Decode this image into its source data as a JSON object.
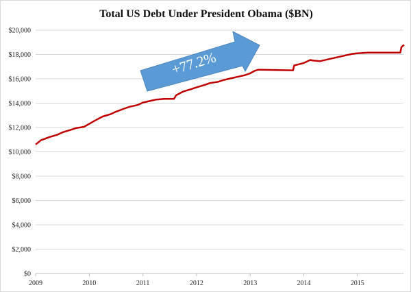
{
  "chart_data": {
    "type": "line",
    "title": "Total US Debt Under President Obama ($BN)",
    "xlabel": "",
    "ylabel": "",
    "xlim": [
      2009,
      2015.9
    ],
    "ylim": [
      0,
      20000
    ],
    "x_ticks": [
      "2009",
      "2010",
      "2011",
      "2012",
      "2013",
      "2014",
      "2015"
    ],
    "y_ticks": [
      "$0",
      "$2,000",
      "$4,000",
      "$6,000",
      "$8,000",
      "$10,000",
      "$12,000",
      "$14,000",
      "$16,000",
      "$18,000",
      "$20,000"
    ],
    "grid": "horizontal",
    "line_color": "#c00000",
    "series": [
      {
        "x": [
          2009.0,
          2009.1,
          2009.25,
          2009.4,
          2009.5,
          2009.65,
          2009.75,
          2009.9,
          2010.0,
          2010.1,
          2010.25,
          2010.4,
          2010.5,
          2010.65,
          2010.75,
          2010.9,
          2011.0,
          2011.15,
          2011.25,
          2011.4,
          2011.58,
          2011.62,
          2011.75,
          2011.9,
          2012.0,
          2012.15,
          2012.25,
          2012.4,
          2012.5,
          2012.65,
          2012.75,
          2012.9,
          2013.0,
          2013.08,
          2013.15,
          2013.8,
          2013.82,
          2014.0,
          2014.12,
          2014.18,
          2014.3,
          2014.5,
          2014.75,
          2014.9,
          2015.0,
          2015.2,
          2015.8,
          2015.82,
          2015.87
        ],
        "y": [
          10600,
          10950,
          11200,
          11400,
          11600,
          11800,
          11950,
          12050,
          12300,
          12550,
          12900,
          13100,
          13300,
          13550,
          13700,
          13850,
          14050,
          14200,
          14300,
          14350,
          14350,
          14650,
          14950,
          15150,
          15300,
          15500,
          15650,
          15750,
          15900,
          16050,
          16150,
          16300,
          16450,
          16650,
          16750,
          16700,
          17100,
          17300,
          17550,
          17500,
          17450,
          17650,
          17900,
          18050,
          18100,
          18150,
          18150,
          18600,
          18800
        ]
      }
    ],
    "annotation": {
      "text": "+77.2%",
      "color": "#5b9bd5"
    }
  }
}
